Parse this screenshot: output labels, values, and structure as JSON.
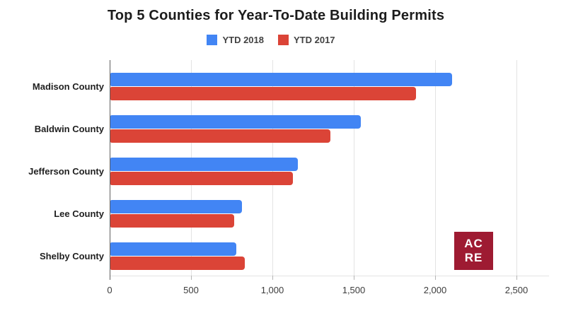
{
  "title": "Top 5 Counties for Year-To-Date Building Permits",
  "legend": [
    {
      "label": "YTD 2018",
      "color": "#4285f4"
    },
    {
      "label": "YTD 2017",
      "color": "#db4437"
    }
  ],
  "logo": {
    "line1": "AC",
    "line2": "RE",
    "bg_color": "#9e1b32",
    "text_color": "#ffffff"
  },
  "colors": {
    "series_2018": "#4285f4",
    "series_2017": "#db4437",
    "gridline": "#e3e3e3",
    "axis_line": "#5f5f5f",
    "title_text": "#1c1c1c"
  },
  "chart_data": {
    "type": "bar",
    "orientation": "horizontal",
    "title": "Top 5 Counties for Year-To-Date Building Permits",
    "categories": [
      "Madison County",
      "Baldwin County",
      "Jefferson County",
      "Lee County",
      "Shelby County"
    ],
    "series": [
      {
        "name": "YTD 2018",
        "color": "#4285f4",
        "values": [
          2100,
          1540,
          1150,
          810,
          775
        ]
      },
      {
        "name": "YTD 2017",
        "color": "#db4437",
        "values": [
          1880,
          1350,
          1120,
          760,
          825
        ]
      }
    ],
    "xlabel": "",
    "ylabel": "",
    "xlim": [
      0,
      2500
    ],
    "x_ticks": [
      0,
      500,
      1000,
      1500,
      2000,
      2500
    ],
    "x_tick_labels": [
      "0",
      "500",
      "1,000",
      "1,500",
      "2,000",
      "2,500"
    ],
    "grid": "vertical",
    "legend_position": "top"
  }
}
